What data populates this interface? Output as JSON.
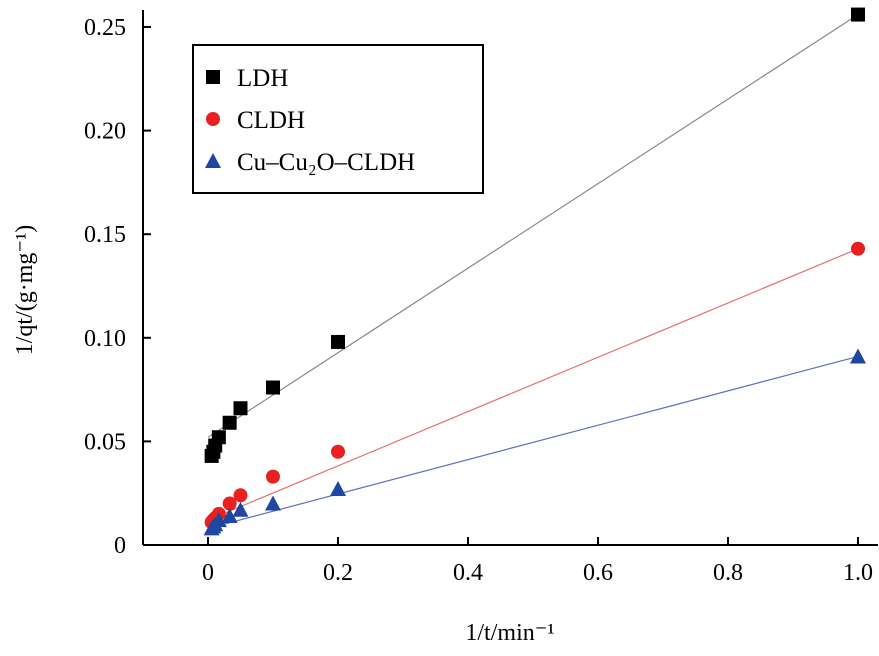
{
  "chart_data": {
    "type": "scatter",
    "xlabel": "1/t/min⁻¹",
    "ylabel": "1/qt/(g·mg⁻¹)",
    "xlim": [
      -0.1,
      1.03
    ],
    "ylim": [
      0,
      0.26
    ],
    "xticks": [
      "0",
      "0.2",
      "0.4",
      "0.6",
      "0.8",
      "1.0"
    ],
    "yticks": [
      "0",
      "0.05",
      "0.10",
      "0.15",
      "0.20",
      "0.25"
    ],
    "legend_position": "top-left",
    "x": [
      1.0,
      0.2,
      0.1,
      0.05,
      0.0333,
      0.0167,
      0.0111,
      0.0083,
      0.0056
    ],
    "series": [
      {
        "name": "LDH",
        "marker": "square",
        "color": "#000000",
        "line_color": "#888888",
        "values": [
          0.256,
          0.098,
          0.076,
          0.066,
          0.059,
          0.052,
          0.048,
          0.045,
          0.043
        ],
        "fit": [
          0.052,
          0.256
        ]
      },
      {
        "name": "CLDH",
        "marker": "circle",
        "color": "#e8201f",
        "line_color": "#e87070",
        "values": [
          0.143,
          0.045,
          0.033,
          0.024,
          0.02,
          0.015,
          0.013,
          0.012,
          0.011
        ],
        "fit": [
          0.012,
          0.143
        ]
      },
      {
        "name": "Cu–Cu₂O–CLDH",
        "marker": "triangle",
        "color": "#1f46a0",
        "line_color": "#5a6fc0",
        "values": [
          0.091,
          0.027,
          0.02,
          0.017,
          0.014,
          0.012,
          0.01,
          0.009,
          0.008
        ],
        "fit": [
          0.008,
          0.091
        ]
      }
    ]
  }
}
